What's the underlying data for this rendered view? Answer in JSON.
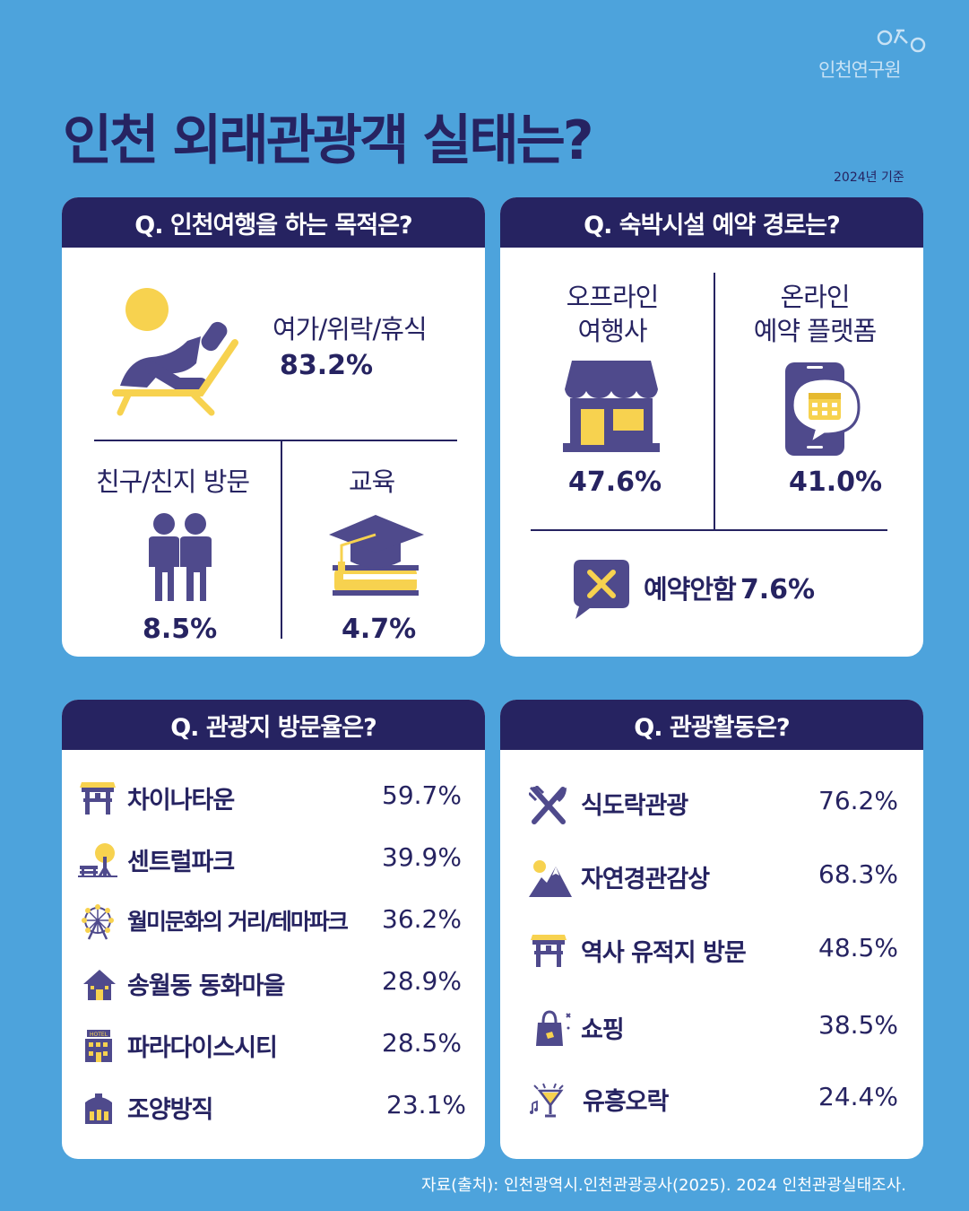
{
  "brand": {
    "name": "인천연구원"
  },
  "title": "인천 외래관광객 실태는?",
  "basis": "2024년 기준",
  "q1": {
    "question": "Q. 인천여행을 하는 목적은?",
    "items": [
      {
        "label": "여가/위락/휴식",
        "value": "83.2%",
        "icon": "beach-lounger-icon"
      },
      {
        "label": "친구/친지 방문",
        "value": "8.5%",
        "icon": "people-icon"
      },
      {
        "label": "교육",
        "value": "4.7%",
        "icon": "graduation-cap-icon"
      }
    ]
  },
  "q2": {
    "question": "Q. 숙박시설 예약 경로는?",
    "offline": {
      "label1": "오프라인",
      "label2": "여행사",
      "value": "47.6%",
      "icon": "store-icon"
    },
    "online": {
      "label1": "온라인",
      "label2": "예약 플랫폼",
      "value": "41.0%",
      "icon": "phone-calendar-icon"
    },
    "none": {
      "label": "예약안함",
      "value": "7.6%",
      "icon": "x-bubble-icon"
    }
  },
  "q3": {
    "question": "Q. 관광지 방문율은?",
    "items": [
      {
        "label": "차이나타운",
        "value": "59.7%",
        "icon": "gate-icon"
      },
      {
        "label": "센트럴파크",
        "value": "39.9%",
        "icon": "park-icon"
      },
      {
        "label": "월미문화의 거리/테마파크",
        "value": "36.2%",
        "icon": "ferris-wheel-icon"
      },
      {
        "label": "송월동 동화마을",
        "value": "28.9%",
        "icon": "house-icon"
      },
      {
        "label": "파라다이스시티",
        "value": "28.5%",
        "icon": "hotel-icon"
      },
      {
        "label": "조양방직",
        "value": "23.1%",
        "icon": "factory-icon"
      }
    ]
  },
  "q4": {
    "question": "Q. 관광활동은?",
    "items": [
      {
        "label": "식도락관광",
        "value": "76.2%",
        "icon": "fork-knife-icon"
      },
      {
        "label": "자연경관감상",
        "value": "68.3%",
        "icon": "mountain-icon"
      },
      {
        "label": "역사 유적지 방문",
        "value": "48.5%",
        "icon": "gate-icon"
      },
      {
        "label": "쇼핑",
        "value": "38.5%",
        "icon": "shopping-bag-icon"
      },
      {
        "label": "유흥오락",
        "value": "24.4%",
        "icon": "cocktail-icon"
      }
    ]
  },
  "source": "자료(출처): 인천광역시.인천관광공사(2025). 2024 인천관광실태조사.",
  "colors": {
    "background": "#4da3dc",
    "navy": "#262361",
    "purple": "#4f4a8c",
    "yellow": "#f7d24f"
  }
}
